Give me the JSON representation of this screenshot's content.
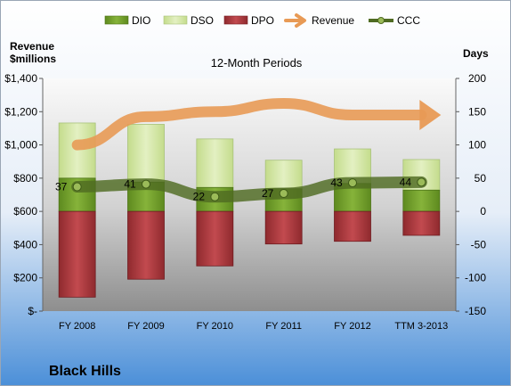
{
  "chart_data": {
    "type": "bar",
    "title": "12-Month Periods",
    "company": "Black Hills",
    "left_axis_label_line1": "Revenue",
    "left_axis_label_line2": "$millions",
    "right_axis_label": "Days",
    "categories": [
      "FY 2008",
      "FY 2009",
      "FY 2010",
      "FY 2011",
      "FY 2012",
      "TTM 3-2013"
    ],
    "left_ylim": [
      0,
      1400
    ],
    "left_ticks": [
      0,
      200,
      400,
      600,
      800,
      1000,
      1200,
      1400
    ],
    "left_tick_labels": [
      "$-",
      "$200",
      "$400",
      "$600",
      "$800",
      "$1,000",
      "$1,200",
      "$1,400"
    ],
    "right_ylim": [
      -150,
      200
    ],
    "right_ticks": [
      -150,
      -100,
      -50,
      0,
      50,
      100,
      150,
      200
    ],
    "right_tick_labels": [
      "-150",
      "-100",
      "-50",
      "0",
      "50",
      "100",
      "150",
      "200"
    ],
    "series": [
      {
        "name": "DIO",
        "axis": "right",
        "kind": "stacked-positive",
        "values": [
          50,
          44,
          36,
          34,
          42,
          32
        ]
      },
      {
        "name": "DSO",
        "axis": "right",
        "kind": "stacked-positive",
        "values": [
          83,
          87,
          73,
          43,
          52,
          46
        ]
      },
      {
        "name": "DPO",
        "axis": "right",
        "kind": "negative",
        "values": [
          -129,
          -102,
          -82,
          -49,
          -45,
          -36
        ]
      },
      {
        "name": "Revenue",
        "axis": "left",
        "kind": "arrow",
        "values": [
          1000,
          1170,
          1200,
          1250,
          1180,
          1180
        ]
      },
      {
        "name": "CCC",
        "axis": "right",
        "kind": "line",
        "values": [
          37,
          41,
          22,
          27,
          43,
          44
        ],
        "labels": [
          "37",
          "41",
          "22",
          "27",
          "43",
          "44"
        ]
      }
    ],
    "legend_position": "top",
    "grid": false,
    "colors": {
      "DIO": "#6f9a2a",
      "DSO": "#d3e6a6",
      "DPO": "#a8353a",
      "Revenue": "#e89a55",
      "CCC": "#4f6b22"
    }
  }
}
